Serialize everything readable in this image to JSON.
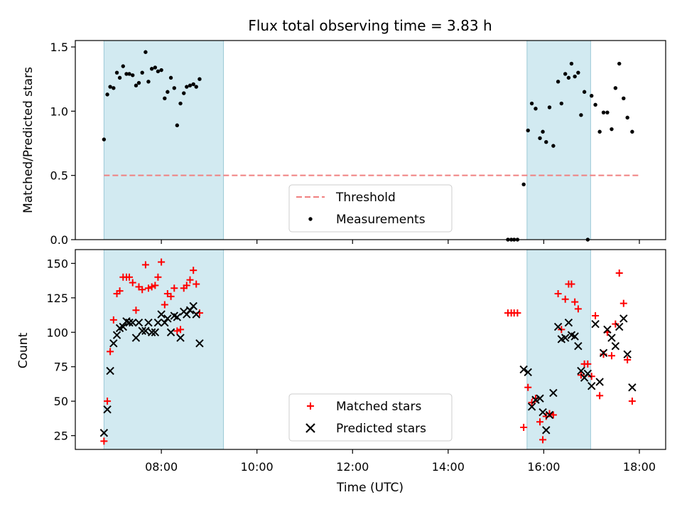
{
  "chart_data": {
    "type": "scatter",
    "title": "Flux total observing time = 3.83 h",
    "xlabel": "Time (UTC)",
    "x_range_hours": [
      6.2,
      18.55
    ],
    "x_ticks": [
      {
        "hour": 8,
        "label": "08:00"
      },
      {
        "hour": 10,
        "label": "10:00"
      },
      {
        "hour": 12,
        "label": "12:00"
      },
      {
        "hour": 14,
        "label": "14:00"
      },
      {
        "hour": 16,
        "label": "16:00"
      },
      {
        "hour": 18,
        "label": "18:00"
      }
    ],
    "shaded_intervals_hours": [
      [
        6.8,
        9.3
      ],
      [
        15.65,
        16.98
      ]
    ],
    "shade_color": "#add8e6",
    "panels": [
      {
        "id": "ratio",
        "ylabel": "Matched/Predicted stars",
        "ylim": [
          0,
          1.55
        ],
        "yticks": [
          0.0,
          0.5,
          1.0,
          1.5
        ],
        "threshold": {
          "name": "Threshold",
          "value": 0.5,
          "x_range_hours": [
            6.8,
            18.0
          ],
          "color": "#f08080"
        },
        "series": [
          {
            "name": "Measurements",
            "marker": "dot",
            "color": "#000000",
            "points": [
              [
                6.8,
                0.78
              ],
              [
                6.87,
                1.13
              ],
              [
                6.93,
                1.19
              ],
              [
                7.0,
                1.18
              ],
              [
                7.07,
                1.3
              ],
              [
                7.13,
                1.26
              ],
              [
                7.2,
                1.35
              ],
              [
                7.27,
                1.29
              ],
              [
                7.33,
                1.29
              ],
              [
                7.4,
                1.28
              ],
              [
                7.47,
                1.2
              ],
              [
                7.53,
                1.22
              ],
              [
                7.6,
                1.3
              ],
              [
                7.67,
                1.46
              ],
              [
                7.73,
                1.23
              ],
              [
                7.8,
                1.33
              ],
              [
                7.87,
                1.34
              ],
              [
                7.93,
                1.31
              ],
              [
                8.0,
                1.32
              ],
              [
                8.07,
                1.1
              ],
              [
                8.13,
                1.15
              ],
              [
                8.2,
                1.26
              ],
              [
                8.27,
                1.18
              ],
              [
                8.33,
                0.89
              ],
              [
                8.4,
                1.06
              ],
              [
                8.47,
                1.14
              ],
              [
                8.53,
                1.19
              ],
              [
                8.6,
                1.2
              ],
              [
                8.67,
                1.21
              ],
              [
                8.73,
                1.19
              ],
              [
                8.8,
                1.25
              ],
              [
                15.25,
                0.0
              ],
              [
                15.32,
                0.0
              ],
              [
                15.38,
                0.0
              ],
              [
                15.45,
                0.0
              ],
              [
                15.58,
                0.43
              ],
              [
                15.67,
                0.85
              ],
              [
                15.75,
                1.06
              ],
              [
                15.83,
                1.02
              ],
              [
                15.92,
                0.79
              ],
              [
                15.98,
                0.84
              ],
              [
                16.05,
                0.76
              ],
              [
                16.12,
                1.03
              ],
              [
                16.2,
                0.73
              ],
              [
                16.3,
                1.23
              ],
              [
                16.37,
                1.06
              ],
              [
                16.45,
                1.29
              ],
              [
                16.52,
                1.26
              ],
              [
                16.58,
                1.37
              ],
              [
                16.65,
                1.27
              ],
              [
                16.72,
                1.3
              ],
              [
                16.78,
                0.97
              ],
              [
                16.85,
                1.15
              ],
              [
                16.92,
                0.0
              ],
              [
                17.0,
                1.12
              ],
              [
                17.08,
                1.05
              ],
              [
                17.17,
                0.84
              ],
              [
                17.25,
                0.99
              ],
              [
                17.33,
                0.99
              ],
              [
                17.42,
                0.86
              ],
              [
                17.5,
                1.18
              ],
              [
                17.58,
                1.37
              ],
              [
                17.67,
                1.1
              ],
              [
                17.75,
                0.95
              ],
              [
                17.85,
                0.84
              ]
            ]
          }
        ],
        "legend": {
          "position": "lower-center",
          "entries": [
            "Threshold",
            "Measurements"
          ]
        }
      },
      {
        "id": "count",
        "ylabel": "Count",
        "ylim": [
          15,
          160
        ],
        "yticks": [
          25,
          50,
          75,
          100,
          125,
          150
        ],
        "series": [
          {
            "name": "Matched stars",
            "marker": "plus",
            "color": "#ff0000",
            "points": [
              [
                6.8,
                21
              ],
              [
                6.87,
                50
              ],
              [
                6.93,
                86
              ],
              [
                7.0,
                109
              ],
              [
                7.07,
                128
              ],
              [
                7.13,
                130
              ],
              [
                7.2,
                140
              ],
              [
                7.27,
                140
              ],
              [
                7.33,
                140
              ],
              [
                7.4,
                136
              ],
              [
                7.47,
                116
              ],
              [
                7.53,
                133
              ],
              [
                7.6,
                131
              ],
              [
                7.67,
                149
              ],
              [
                7.73,
                132
              ],
              [
                7.8,
                133
              ],
              [
                7.87,
                134
              ],
              [
                7.93,
                140
              ],
              [
                8.0,
                151
              ],
              [
                8.07,
                120
              ],
              [
                8.13,
                128
              ],
              [
                8.2,
                126
              ],
              [
                8.27,
                132
              ],
              [
                8.33,
                101
              ],
              [
                8.4,
                102
              ],
              [
                8.47,
                132
              ],
              [
                8.53,
                134
              ],
              [
                8.6,
                138
              ],
              [
                8.67,
                145
              ],
              [
                8.73,
                135
              ],
              [
                8.8,
                114
              ],
              [
                15.25,
                114
              ],
              [
                15.32,
                114
              ],
              [
                15.38,
                114
              ],
              [
                15.45,
                114
              ],
              [
                15.58,
                31
              ],
              [
                15.67,
                60
              ],
              [
                15.75,
                49
              ],
              [
                15.83,
                52
              ],
              [
                15.92,
                35
              ],
              [
                15.98,
                22
              ],
              [
                16.05,
                39
              ],
              [
                16.12,
                41
              ],
              [
                16.2,
                40
              ],
              [
                16.3,
                128
              ],
              [
                16.37,
                102
              ],
              [
                16.45,
                124
              ],
              [
                16.52,
                135
              ],
              [
                16.58,
                135
              ],
              [
                16.65,
                122
              ],
              [
                16.72,
                117
              ],
              [
                16.78,
                69
              ],
              [
                16.85,
                77
              ],
              [
                16.92,
                77
              ],
              [
                17.0,
                68
              ],
              [
                17.08,
                112
              ],
              [
                17.17,
                54
              ],
              [
                17.25,
                84
              ],
              [
                17.33,
                100
              ],
              [
                17.42,
                83
              ],
              [
                17.5,
                106
              ],
              [
                17.58,
                143
              ],
              [
                17.67,
                121
              ],
              [
                17.75,
                80
              ],
              [
                17.85,
                50
              ]
            ]
          },
          {
            "name": "Predicted stars",
            "marker": "x",
            "color": "#000000",
            "points": [
              [
                6.8,
                27
              ],
              [
                6.87,
                44
              ],
              [
                6.93,
                72
              ],
              [
                7.0,
                92
              ],
              [
                7.07,
                98
              ],
              [
                7.13,
                103
              ],
              [
                7.2,
                104
              ],
              [
                7.27,
                108
              ],
              [
                7.33,
                107
              ],
              [
                7.4,
                107
              ],
              [
                7.47,
                96
              ],
              [
                7.53,
                107
              ],
              [
                7.6,
                101
              ],
              [
                7.67,
                101
              ],
              [
                7.73,
                107
              ],
              [
                7.8,
                100
              ],
              [
                7.87,
                100
              ],
              [
                7.93,
                107
              ],
              [
                8.0,
                113
              ],
              [
                8.07,
                107
              ],
              [
                8.13,
                110
              ],
              [
                8.2,
                100
              ],
              [
                8.27,
                112
              ],
              [
                8.33,
                111
              ],
              [
                8.4,
                96
              ],
              [
                8.47,
                115
              ],
              [
                8.53,
                113
              ],
              [
                8.6,
                116
              ],
              [
                8.67,
                119
              ],
              [
                8.73,
                113
              ],
              [
                8.8,
                92
              ],
              [
                15.58,
                73
              ],
              [
                15.67,
                71
              ],
              [
                15.75,
                46
              ],
              [
                15.83,
                51
              ],
              [
                15.92,
                52
              ],
              [
                15.98,
                42
              ],
              [
                16.05,
                29
              ],
              [
                16.12,
                40
              ],
              [
                16.2,
                56
              ],
              [
                16.3,
                104
              ],
              [
                16.37,
                95
              ],
              [
                16.45,
                96
              ],
              [
                16.52,
                107
              ],
              [
                16.58,
                98
              ],
              [
                16.65,
                97
              ],
              [
                16.72,
                90
              ],
              [
                16.78,
                72
              ],
              [
                16.85,
                67
              ],
              [
                16.92,
                70
              ],
              [
                17.0,
                61
              ],
              [
                17.08,
                106
              ],
              [
                17.17,
                64
              ],
              [
                17.25,
                85
              ],
              [
                17.33,
                102
              ],
              [
                17.42,
                96
              ],
              [
                17.5,
                90
              ],
              [
                17.58,
                104
              ],
              [
                17.67,
                110
              ],
              [
                17.75,
                84
              ],
              [
                17.85,
                60
              ]
            ]
          }
        ],
        "legend": {
          "position": "lower-center",
          "entries": [
            "Matched stars",
            "Predicted stars"
          ]
        }
      }
    ]
  }
}
